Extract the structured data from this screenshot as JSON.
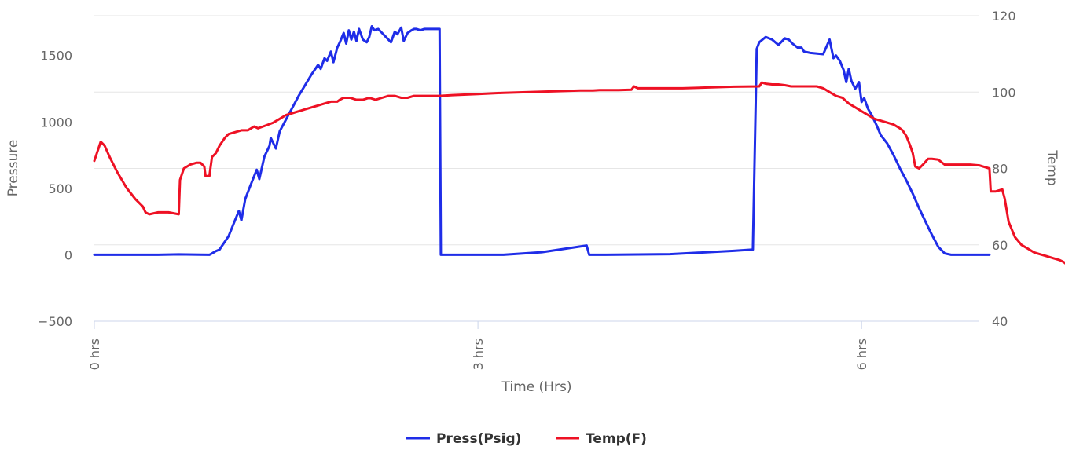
{
  "chart_data": {
    "type": "line",
    "xlabel": "Time (Hrs)",
    "x_ticks": [
      {
        "value": 0,
        "label": "0 hrs"
      },
      {
        "value": 3,
        "label": "3 hrs"
      },
      {
        "value": 6,
        "label": "6 hrs"
      }
    ],
    "xlim": [
      0,
      6.93
    ],
    "y_left": {
      "label": "Pressure",
      "ylim": [
        -500,
        1800
      ],
      "ticks": [
        -500,
        0,
        500,
        1000,
        1500
      ]
    },
    "y_right": {
      "label": "Temp",
      "ylim": [
        40,
        120
      ],
      "ticks": [
        40,
        60,
        80,
        100,
        120
      ]
    },
    "grid": true,
    "legend_position": "bottom-center",
    "series": [
      {
        "name": "Press(Psig)",
        "axis": "left",
        "color": "#1f2de8",
        "points": [
          [
            0,
            0
          ],
          [
            0.5,
            0
          ],
          [
            0.66,
            3
          ],
          [
            0.9,
            0
          ],
          [
            0.92,
            10
          ],
          [
            0.95,
            28
          ],
          [
            0.98,
            40
          ],
          [
            1.0,
            70
          ],
          [
            1.05,
            140
          ],
          [
            1.1,
            260
          ],
          [
            1.13,
            330
          ],
          [
            1.15,
            260
          ],
          [
            1.18,
            420
          ],
          [
            1.22,
            520
          ],
          [
            1.27,
            640
          ],
          [
            1.29,
            570
          ],
          [
            1.33,
            740
          ],
          [
            1.37,
            820
          ],
          [
            1.38,
            880
          ],
          [
            1.42,
            800
          ],
          [
            1.45,
            930
          ],
          [
            1.5,
            1020
          ],
          [
            1.55,
            1110
          ],
          [
            1.6,
            1200
          ],
          [
            1.65,
            1280
          ],
          [
            1.7,
            1360
          ],
          [
            1.75,
            1430
          ],
          [
            1.77,
            1400
          ],
          [
            1.8,
            1480
          ],
          [
            1.82,
            1460
          ],
          [
            1.85,
            1530
          ],
          [
            1.87,
            1450
          ],
          [
            1.9,
            1560
          ],
          [
            1.92,
            1600
          ],
          [
            1.95,
            1670
          ],
          [
            1.97,
            1590
          ],
          [
            1.99,
            1690
          ],
          [
            2.01,
            1620
          ],
          [
            2.03,
            1680
          ],
          [
            2.05,
            1610
          ],
          [
            2.07,
            1700
          ],
          [
            2.1,
            1620
          ],
          [
            2.13,
            1600
          ],
          [
            2.15,
            1640
          ],
          [
            2.17,
            1720
          ],
          [
            2.19,
            1690
          ],
          [
            2.22,
            1700
          ],
          [
            2.25,
            1670
          ],
          [
            2.28,
            1640
          ],
          [
            2.3,
            1620
          ],
          [
            2.32,
            1600
          ],
          [
            2.35,
            1680
          ],
          [
            2.37,
            1660
          ],
          [
            2.4,
            1710
          ],
          [
            2.42,
            1610
          ],
          [
            2.45,
            1670
          ],
          [
            2.48,
            1690
          ],
          [
            2.5,
            1700
          ],
          [
            2.52,
            1700
          ],
          [
            2.55,
            1690
          ],
          [
            2.58,
            1700
          ],
          [
            2.6,
            1700
          ],
          [
            2.7,
            1700
          ],
          [
            2.71,
            0
          ],
          [
            3.0,
            0
          ],
          [
            3.2,
            0
          ],
          [
            3.5,
            20
          ],
          [
            3.85,
            70
          ],
          [
            3.87,
            0
          ],
          [
            4.0,
            0
          ],
          [
            4.5,
            5
          ],
          [
            5.0,
            30
          ],
          [
            5.15,
            40
          ],
          [
            5.18,
            1550
          ],
          [
            5.2,
            1600
          ],
          [
            5.25,
            1640
          ],
          [
            5.3,
            1620
          ],
          [
            5.35,
            1580
          ],
          [
            5.4,
            1630
          ],
          [
            5.43,
            1620
          ],
          [
            5.46,
            1590
          ],
          [
            5.5,
            1560
          ],
          [
            5.53,
            1560
          ],
          [
            5.55,
            1530
          ],
          [
            5.6,
            1520
          ],
          [
            5.7,
            1510
          ],
          [
            5.75,
            1620
          ],
          [
            5.78,
            1480
          ],
          [
            5.8,
            1500
          ],
          [
            5.83,
            1460
          ],
          [
            5.86,
            1390
          ],
          [
            5.88,
            1300
          ],
          [
            5.9,
            1400
          ],
          [
            5.92,
            1310
          ],
          [
            5.95,
            1250
          ],
          [
            5.98,
            1300
          ],
          [
            6.0,
            1150
          ],
          [
            6.02,
            1180
          ],
          [
            6.05,
            1100
          ],
          [
            6.08,
            1050
          ],
          [
            6.12,
            970
          ],
          [
            6.15,
            900
          ],
          [
            6.2,
            840
          ],
          [
            6.25,
            750
          ],
          [
            6.3,
            650
          ],
          [
            6.35,
            560
          ],
          [
            6.4,
            460
          ],
          [
            6.45,
            350
          ],
          [
            6.5,
            250
          ],
          [
            6.55,
            150
          ],
          [
            6.6,
            60
          ],
          [
            6.65,
            10
          ],
          [
            6.7,
            0
          ],
          [
            7.0,
            0
          ]
        ]
      },
      {
        "name": "Temp(F)",
        "axis": "right",
        "color": "#ee1124",
        "points": [
          [
            0,
            82
          ],
          [
            0.03,
            85
          ],
          [
            0.05,
            87
          ],
          [
            0.08,
            86
          ],
          [
            0.12,
            83
          ],
          [
            0.18,
            79
          ],
          [
            0.25,
            75
          ],
          [
            0.32,
            72
          ],
          [
            0.38,
            70
          ],
          [
            0.4,
            68.5
          ],
          [
            0.43,
            68
          ],
          [
            0.5,
            68.5
          ],
          [
            0.58,
            68.5
          ],
          [
            0.66,
            68
          ],
          [
            0.67,
            77
          ],
          [
            0.7,
            80
          ],
          [
            0.75,
            81
          ],
          [
            0.8,
            81.5
          ],
          [
            0.83,
            81.5
          ],
          [
            0.86,
            80.5
          ],
          [
            0.87,
            78
          ],
          [
            0.9,
            78
          ],
          [
            0.92,
            83
          ],
          [
            0.95,
            84
          ],
          [
            0.98,
            86
          ],
          [
            1.02,
            88
          ],
          [
            1.05,
            89
          ],
          [
            1.1,
            89.5
          ],
          [
            1.15,
            90
          ],
          [
            1.2,
            90
          ],
          [
            1.25,
            91
          ],
          [
            1.28,
            90.5
          ],
          [
            1.32,
            91
          ],
          [
            1.36,
            91.5
          ],
          [
            1.4,
            92
          ],
          [
            1.45,
            93
          ],
          [
            1.5,
            94
          ],
          [
            1.55,
            94.5
          ],
          [
            1.6,
            95
          ],
          [
            1.65,
            95.5
          ],
          [
            1.7,
            96
          ],
          [
            1.75,
            96.5
          ],
          [
            1.8,
            97
          ],
          [
            1.85,
            97.5
          ],
          [
            1.9,
            97.5
          ],
          [
            1.92,
            98
          ],
          [
            1.95,
            98.5
          ],
          [
            2.0,
            98.5
          ],
          [
            2.05,
            98
          ],
          [
            2.1,
            98
          ],
          [
            2.15,
            98.5
          ],
          [
            2.2,
            98
          ],
          [
            2.25,
            98.5
          ],
          [
            2.3,
            99
          ],
          [
            2.35,
            99
          ],
          [
            2.4,
            98.5
          ],
          [
            2.45,
            98.5
          ],
          [
            2.5,
            99
          ],
          [
            2.6,
            99
          ],
          [
            2.7,
            99
          ],
          [
            2.8,
            99.2
          ],
          [
            3.0,
            99.5
          ],
          [
            3.2,
            99.8
          ],
          [
            3.4,
            100
          ],
          [
            3.6,
            100.2
          ],
          [
            3.8,
            100.4
          ],
          [
            3.9,
            100.4
          ],
          [
            3.95,
            100.5
          ],
          [
            4.0,
            100.5
          ],
          [
            4.1,
            100.5
          ],
          [
            4.2,
            100.6
          ],
          [
            4.22,
            101.5
          ],
          [
            4.25,
            101
          ],
          [
            4.4,
            101
          ],
          [
            4.6,
            101
          ],
          [
            4.8,
            101.2
          ],
          [
            5.0,
            101.4
          ],
          [
            5.2,
            101.5
          ],
          [
            5.22,
            102.5
          ],
          [
            5.25,
            102.2
          ],
          [
            5.3,
            102
          ],
          [
            5.35,
            102
          ],
          [
            5.4,
            101.8
          ],
          [
            5.45,
            101.5
          ],
          [
            5.5,
            101.5
          ],
          [
            5.6,
            101.5
          ],
          [
            5.65,
            101.5
          ],
          [
            5.7,
            101
          ],
          [
            5.75,
            100
          ],
          [
            5.8,
            99
          ],
          [
            5.85,
            98.5
          ],
          [
            5.9,
            97
          ],
          [
            5.95,
            96
          ],
          [
            6.0,
            95
          ],
          [
            6.05,
            94
          ],
          [
            6.1,
            93
          ],
          [
            6.15,
            92.5
          ],
          [
            6.2,
            92
          ],
          [
            6.25,
            91.5
          ],
          [
            6.3,
            90.5
          ],
          [
            6.32,
            90
          ],
          [
            6.35,
            88.5
          ],
          [
            6.38,
            86
          ],
          [
            6.4,
            84
          ],
          [
            6.42,
            80.5
          ],
          [
            6.45,
            80
          ],
          [
            6.48,
            81
          ],
          [
            6.52,
            82.5
          ],
          [
            6.55,
            82.5
          ],
          [
            6.6,
            82.3
          ],
          [
            6.63,
            81.5
          ],
          [
            6.65,
            81
          ],
          [
            6.75,
            81
          ],
          [
            6.85,
            81
          ],
          [
            6.92,
            80.8
          ],
          [
            6.95,
            80.5
          ],
          [
            7.0,
            80
          ],
          [
            7.01,
            74
          ],
          [
            7.05,
            74
          ],
          [
            7.1,
            74.5
          ],
          [
            7.12,
            72
          ],
          [
            7.15,
            66
          ],
          [
            7.2,
            62
          ],
          [
            7.25,
            60
          ],
          [
            7.3,
            59
          ],
          [
            7.35,
            58
          ],
          [
            7.4,
            57.5
          ],
          [
            7.45,
            57
          ],
          [
            7.5,
            56.5
          ],
          [
            7.55,
            56
          ],
          [
            7.58,
            55.5
          ],
          [
            7.6,
            55
          ],
          [
            7.62,
            55
          ],
          [
            7.63,
            58
          ],
          [
            7.65,
            60
          ],
          [
            7.7,
            61.5
          ],
          [
            7.73,
            62
          ]
        ]
      }
    ]
  }
}
